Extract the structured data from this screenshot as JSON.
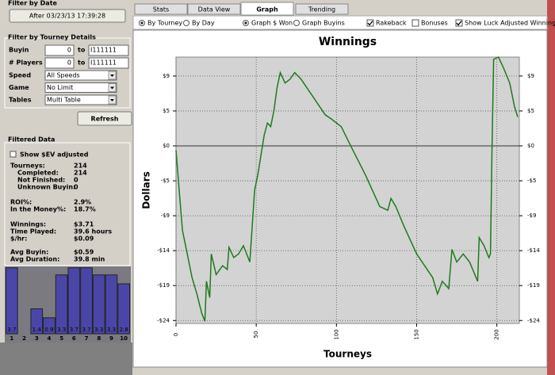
{
  "filter_by_date": {
    "title": "Filter by Date",
    "button": "After 03/23/13 17:39:28"
  },
  "filter_by_tourney": {
    "title": "Filter by Tourney Details",
    "ranges": [
      {
        "label": "Buyin",
        "from": "0",
        "to_label": "to",
        "to": "I111111"
      },
      {
        "label": "# Players",
        "from": "0",
        "to_label": "to",
        "to": "I111111"
      }
    ],
    "selects": [
      {
        "label": "Speed",
        "value": "All Speeds"
      },
      {
        "label": "Game",
        "value": "No Limit"
      },
      {
        "label": "Tables",
        "value": "Multi Table"
      }
    ],
    "refresh": "Refresh"
  },
  "filtered_data": {
    "title": "Filtered Data",
    "checkbox": "Show $EV adjusted",
    "stats": [
      {
        "label": "Tourneys:",
        "value": "214"
      },
      {
        "label": "Completed:",
        "value": "214",
        "sub": true
      },
      {
        "label": "Not Finished:",
        "value": "0",
        "sub": true
      },
      {
        "label": "Unknown Buyin:",
        "value": "0",
        "sub": true
      },
      {
        "label": "ROI%:",
        "value": "2.9%"
      },
      {
        "label": "In the Money%:",
        "value": "18.7%"
      },
      {
        "label": "Winnings:",
        "value": "$3.71"
      },
      {
        "label": "Time Played:",
        "value": "39.6 hours"
      },
      {
        "label": "$/hr:",
        "value": "$0.09"
      },
      {
        "label": "Avg Buyin:",
        "value": "$0.59"
      },
      {
        "label": "Avg Duration:",
        "value": "39.8 min"
      }
    ]
  },
  "tabs": [
    "Stats",
    "Data View",
    "Graph",
    "Trending"
  ],
  "active_tab": "Graph",
  "options": [
    {
      "label": "By Tourney",
      "kind": "radio",
      "checked": true
    },
    {
      "label": "By Day",
      "kind": "radio",
      "checked": false
    },
    {
      "label": "Graph $ Won",
      "kind": "radio",
      "checked": true
    },
    {
      "label": "Graph Buyins",
      "kind": "radio",
      "checked": false
    },
    {
      "label": "Rakeback",
      "kind": "checkbox",
      "checked": true
    },
    {
      "label": "Bonuses",
      "kind": "checkbox",
      "checked": false
    },
    {
      "label": "Show Luck Adjusted Winning",
      "kind": "checkbox",
      "checked": true
    }
  ],
  "chart_data": [
    {
      "type": "line",
      "title": "Winnings",
      "x_label": "Tourneys",
      "y_label": "Dollars",
      "color": "#1e7a1e",
      "x": [
        0,
        2,
        4,
        7,
        10,
        13,
        16,
        18,
        19,
        21,
        22,
        25,
        29,
        32,
        33,
        36,
        39,
        42,
        46,
        49,
        51,
        55,
        57,
        59,
        61,
        63,
        65,
        68,
        71,
        74,
        78,
        83,
        88,
        93,
        97,
        103,
        108,
        118,
        127,
        132,
        134,
        137,
        142,
        150,
        155,
        160,
        163,
        166,
        170,
        172,
        175,
        179,
        183,
        188,
        189,
        192,
        195,
        196,
        197,
        198,
        201,
        204,
        208,
        211,
        213
      ],
      "values": [
        -0.6,
        -6,
        -11.4,
        -14.6,
        -17.8,
        -20,
        -22.6,
        -23.7,
        -18.3,
        -20.5,
        -14.6,
        -17.4,
        -16.2,
        -16.7,
        -13.7,
        -15.1,
        -14.6,
        -13.5,
        -15.7,
        -6,
        -3.9,
        1.5,
        3.1,
        2.6,
        4.7,
        7.9,
        9.9,
        8.5,
        9,
        9.9,
        9,
        7.4,
        5.8,
        4.2,
        3.6,
        2.6,
        0.4,
        -3.9,
        -8.2,
        -8.7,
        -7.1,
        -8.2,
        -10.8,
        -14.6,
        -16.2,
        -17.8,
        -20,
        -18.3,
        -19.3,
        -14,
        -15.7,
        -14.6,
        -15.7,
        -18.3,
        -12.4,
        -13.5,
        -15.1,
        -14.6,
        -0.1,
        11.7,
        12,
        10.6,
        8.5,
        5.3,
        3.9
      ],
      "xlim": [
        0,
        214
      ],
      "ylim": [
        -24,
        12
      ],
      "xticks": [
        0,
        50,
        100,
        150,
        200
      ],
      "yticks": [
        {
          "value": 9.44,
          "label": "$9"
        },
        {
          "value": 4.72,
          "label": "$5"
        },
        {
          "value": 0,
          "label": "$0"
        },
        {
          "value": -4.72,
          "label": "-$5"
        },
        {
          "value": -9.44,
          "label": "-$9"
        },
        {
          "value": -14.16,
          "label": "-$14"
        },
        {
          "value": -18.88,
          "label": "-$19"
        },
        {
          "value": -23.6,
          "label": "-$24"
        }
      ],
      "grid": true
    },
    {
      "type": "bar",
      "categories": [
        1,
        2,
        3,
        4,
        5,
        6,
        7,
        8,
        9,
        10
      ],
      "values": [
        3.7,
        null,
        1.4,
        0.9,
        3.3,
        3.7,
        3.7,
        3.3,
        3.3,
        2.8
      ],
      "color": "#4a46a8",
      "ylim": [
        0,
        4
      ]
    }
  ]
}
